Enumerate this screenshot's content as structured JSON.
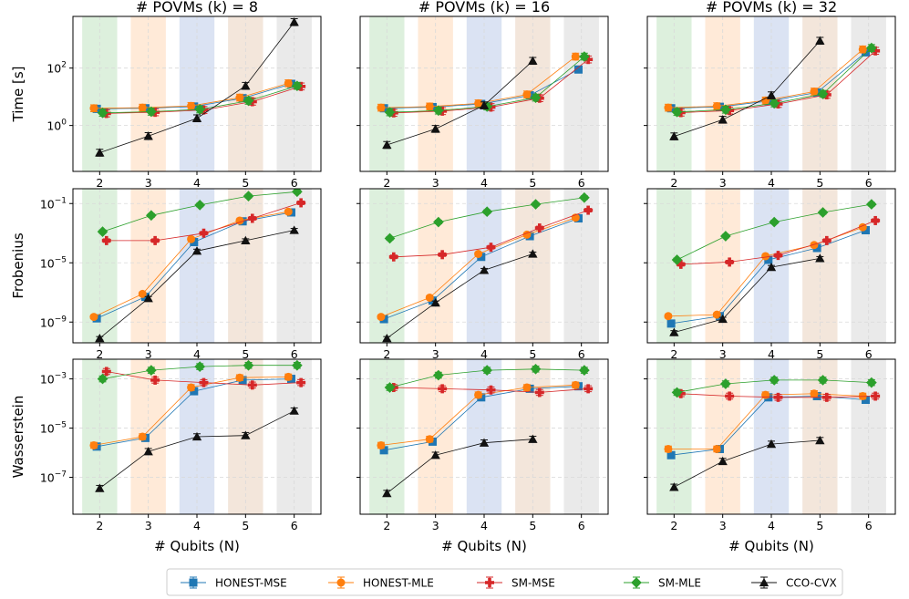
{
  "colors": {
    "HONEST-MSE": "#1f77b4",
    "HONEST-MLE": "#ff7f0e",
    "SM-MSE": "#d62728",
    "SM-MLE": "#2ca02c",
    "CCO-CVX": "#111111",
    "band": [
      "#2ca02c",
      "#ff7f0e",
      "#1f4fb4",
      "#b5651d",
      "#7f7f7f"
    ]
  },
  "chart_data": {
    "type": "line",
    "grid_type": "small-multiples",
    "x": [
      2,
      3,
      4,
      5,
      6
    ],
    "xlabel": "# Qubits (N)",
    "xtick_labels": [
      "2",
      "3",
      "4",
      "5",
      "6"
    ],
    "column_titles": [
      "# POVMs (k) = 8",
      "# POVMs (k) = 16",
      "# POVMs (k) = 32"
    ],
    "rows": [
      {
        "ylabel": "Time [s]",
        "yscale": "log",
        "ylim_log10": [
          -1.6,
          3.8
        ],
        "ticks": [
          {
            "exp": 0,
            "label_base": "10",
            "label_exp": "0"
          },
          {
            "exp": 2,
            "label_base": "10",
            "label_exp": "2"
          }
        ]
      },
      {
        "ylabel": "Frobenius",
        "yscale": "log",
        "ylim_log10": [
          -10.4,
          0.0
        ],
        "ticks": [
          {
            "exp": -9,
            "label_base": "10",
            "label_exp": "−9"
          },
          {
            "exp": -5,
            "label_base": "10",
            "label_exp": "−5"
          },
          {
            "exp": -1,
            "label_base": "10",
            "label_exp": "−1"
          }
        ]
      },
      {
        "ylabel": "Wasserstein",
        "yscale": "log",
        "ylim_log10": [
          -8.5,
          -2.2
        ],
        "ticks": [
          {
            "exp": -7,
            "label_base": "10",
            "label_exp": "−7"
          },
          {
            "exp": -5,
            "label_base": "10",
            "label_exp": "−5"
          },
          {
            "exp": -3,
            "label_base": "10",
            "label_exp": "−3"
          }
        ]
      }
    ],
    "legend": {
      "position": "bottom-center",
      "entries": [
        "HONEST-MSE",
        "HONEST-MLE",
        "SM-MSE",
        "SM-MLE",
        "CCO-CVX"
      ]
    },
    "series_note": "values are log10 of the measured quantity; null = not run",
    "panels": [
      {
        "row": 0,
        "col": 0,
        "series": {
          "HONEST-MSE": [
            0.58,
            0.6,
            0.66,
            0.95,
            1.45
          ],
          "HONEST-MLE": [
            0.6,
            0.62,
            0.68,
            0.97,
            1.47
          ],
          "SM-MSE": [
            0.42,
            0.46,
            0.54,
            0.83,
            1.36
          ],
          "SM-MLE": [
            0.44,
            0.48,
            0.56,
            0.86,
            1.38
          ],
          "CCO-CVX": [
            -0.95,
            -0.37,
            0.25,
            1.38,
            3.6
          ]
        }
      },
      {
        "row": 0,
        "col": 1,
        "series": {
          "HONEST-MSE": [
            0.6,
            0.64,
            0.75,
            1.05,
            1.95
          ],
          "HONEST-MLE": [
            0.62,
            0.66,
            0.77,
            1.08,
            2.4
          ],
          "SM-MSE": [
            0.44,
            0.5,
            0.64,
            0.95,
            2.3
          ],
          "SM-MLE": [
            0.46,
            0.52,
            0.66,
            0.97,
            2.4
          ],
          "CCO-CVX": [
            -0.68,
            -0.12,
            0.7,
            2.25,
            null
          ]
        }
      },
      {
        "row": 0,
        "col": 2,
        "series": {
          "HONEST-MSE": [
            0.6,
            0.65,
            0.85,
            1.15,
            2.55
          ],
          "HONEST-MLE": [
            0.62,
            0.67,
            0.87,
            1.18,
            2.65
          ],
          "SM-MSE": [
            0.45,
            0.52,
            0.75,
            1.07,
            2.6
          ],
          "SM-MLE": [
            0.47,
            0.55,
            0.77,
            1.1,
            2.7
          ],
          "CCO-CVX": [
            -0.38,
            0.2,
            1.05,
            2.95,
            null
          ]
        }
      },
      {
        "row": 1,
        "col": 0,
        "series": {
          "HONEST-MSE": [
            -8.75,
            -7.3,
            -3.6,
            -2.2,
            -1.6
          ],
          "HONEST-MLE": [
            -8.65,
            -7.1,
            -3.4,
            -2.15,
            -1.55
          ],
          "SM-MSE": [
            -3.5,
            -3.5,
            -3.0,
            -2.0,
            -0.95
          ],
          "SM-MLE": [
            -2.9,
            -1.8,
            -1.1,
            -0.5,
            -0.2
          ],
          "CCO-CVX": [
            -10.1,
            -7.4,
            -4.2,
            -3.5,
            -2.8
          ]
        }
      },
      {
        "row": 1,
        "col": 1,
        "series": {
          "HONEST-MSE": [
            -8.8,
            -7.55,
            -4.6,
            -3.2,
            -2.0
          ],
          "HONEST-MLE": [
            -8.65,
            -7.35,
            -4.4,
            -3.1,
            -1.95
          ],
          "SM-MSE": [
            -4.6,
            -4.45,
            -3.95,
            -2.65,
            -1.45
          ],
          "SM-MLE": [
            -3.35,
            -2.25,
            -1.55,
            -1.05,
            -0.6
          ],
          "CCO-CVX": [
            -10.1,
            -7.7,
            -5.5,
            -4.4,
            null
          ]
        }
      },
      {
        "row": 1,
        "col": 2,
        "series": {
          "HONEST-MSE": [
            -9.1,
            -8.6,
            -4.8,
            -4.0,
            -2.8
          ],
          "HONEST-MLE": [
            -8.6,
            -8.5,
            -4.55,
            -3.8,
            -2.6
          ],
          "SM-MSE": [
            -5.1,
            -4.95,
            -4.5,
            -3.5,
            -2.15
          ],
          "SM-MLE": [
            -4.8,
            -3.2,
            -2.25,
            -1.6,
            -1.05
          ],
          "CCO-CVX": [
            -9.7,
            -8.8,
            -5.3,
            -4.7,
            null
          ]
        }
      },
      {
        "row": 2,
        "col": 0,
        "series": {
          "HONEST-MSE": [
            -5.75,
            -5.4,
            -3.5,
            -3.05,
            -3.0
          ],
          "HONEST-MLE": [
            -5.7,
            -5.35,
            -3.35,
            -2.95,
            -2.92
          ],
          "SM-MSE": [
            -2.7,
            -3.05,
            -3.15,
            -3.25,
            -3.15
          ],
          "SM-MLE": [
            -3.0,
            -2.65,
            -2.5,
            -2.45,
            -2.45
          ],
          "CCO-CVX": [
            -7.45,
            -5.95,
            -5.35,
            -5.3,
            -4.3
          ]
        }
      },
      {
        "row": 2,
        "col": 1,
        "series": {
          "HONEST-MSE": [
            -5.9,
            -5.55,
            -3.75,
            -3.4,
            -3.3
          ],
          "HONEST-MLE": [
            -5.7,
            -5.45,
            -3.65,
            -3.35,
            -3.25
          ],
          "SM-MSE": [
            -3.35,
            -3.4,
            -3.45,
            -3.55,
            -3.4
          ],
          "SM-MLE": [
            -3.35,
            -2.85,
            -2.65,
            -2.6,
            -2.65
          ],
          "CCO-CVX": [
            -7.65,
            -6.1,
            -5.6,
            -5.45,
            null
          ]
        }
      },
      {
        "row": 2,
        "col": 2,
        "series": {
          "HONEST-MSE": [
            -6.1,
            -5.85,
            -3.75,
            -3.7,
            -3.85
          ],
          "HONEST-MLE": [
            -5.85,
            -5.85,
            -3.65,
            -3.6,
            -3.7
          ],
          "SM-MSE": [
            -3.6,
            -3.7,
            -3.75,
            -3.75,
            -3.7
          ],
          "SM-MLE": [
            -3.55,
            -3.2,
            -3.05,
            -3.05,
            -3.15
          ],
          "CCO-CVX": [
            -7.4,
            -6.35,
            -5.65,
            -5.5,
            null
          ]
        }
      }
    ]
  }
}
